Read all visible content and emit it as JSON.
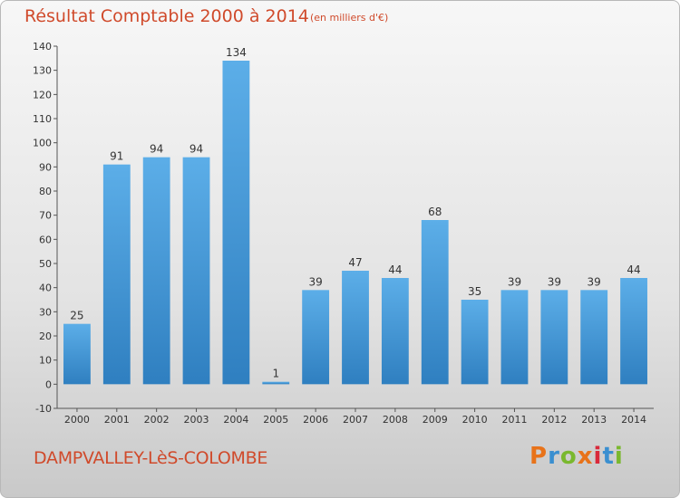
{
  "header": {
    "title": "Résultat Comptable 2000 à 2014",
    "subtitle": "(en milliers d'€)"
  },
  "footer": {
    "commune": "DAMPVALLEY-LèS-COLOMBE",
    "logo_text": "Proxiti",
    "logo_colors": [
      "#e8731a",
      "#3a8fd0",
      "#7ab82e",
      "#e8731a",
      "#d9293b",
      "#3a8fd0",
      "#7ab82e"
    ]
  },
  "colors": {
    "bar_light": "#5caee8",
    "bar_dark": "#2f7fc0",
    "title": "#d04a2b"
  },
  "chart_data": {
    "type": "bar",
    "categories": [
      "2000",
      "2001",
      "2002",
      "2003",
      "2004",
      "2005",
      "2006",
      "2007",
      "2008",
      "2009",
      "2010",
      "2011",
      "2012",
      "2013",
      "2014"
    ],
    "values": [
      25,
      91,
      94,
      94,
      134,
      1,
      39,
      47,
      44,
      68,
      35,
      39,
      39,
      39,
      44
    ],
    "title": "Résultat Comptable 2000 à 2014",
    "ylabel": "",
    "xlabel": "",
    "ylim": [
      -10,
      140
    ],
    "yticks": [
      -10,
      0,
      10,
      20,
      30,
      40,
      50,
      60,
      70,
      80,
      90,
      100,
      110,
      120,
      130,
      140
    ],
    "grid": false,
    "legend": "none"
  }
}
